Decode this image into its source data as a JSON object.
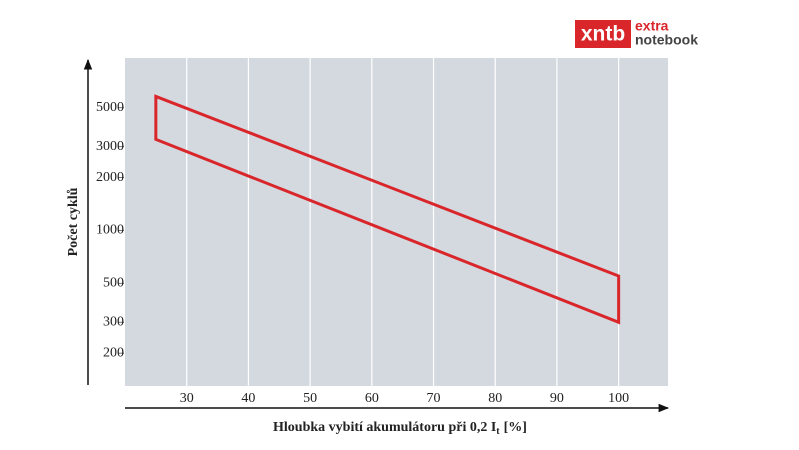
{
  "logo": {
    "brand": "xntb",
    "line1": "extra",
    "line2": "notebook"
  },
  "chart_data": {
    "type": "polygon",
    "ylabel": "Počet cyklů",
    "xlabel": {
      "main": "Hloubka vybití akumulátoru při 0,2 I",
      "sub": "t",
      "unit": "[%]"
    },
    "x": [
      25,
      100,
      100,
      25
    ],
    "values": [
      5800,
      550,
      300,
      3300
    ],
    "color": "#d9262b",
    "xlim": [
      20,
      108
    ],
    "xticks": [
      30,
      40,
      50,
      60,
      70,
      80,
      90,
      100
    ],
    "ylim": [
      130,
      9600
    ],
    "yticks": [
      200,
      300,
      500,
      1000,
      2000,
      3000,
      5000
    ],
    "ylog": true,
    "grid": true
  }
}
